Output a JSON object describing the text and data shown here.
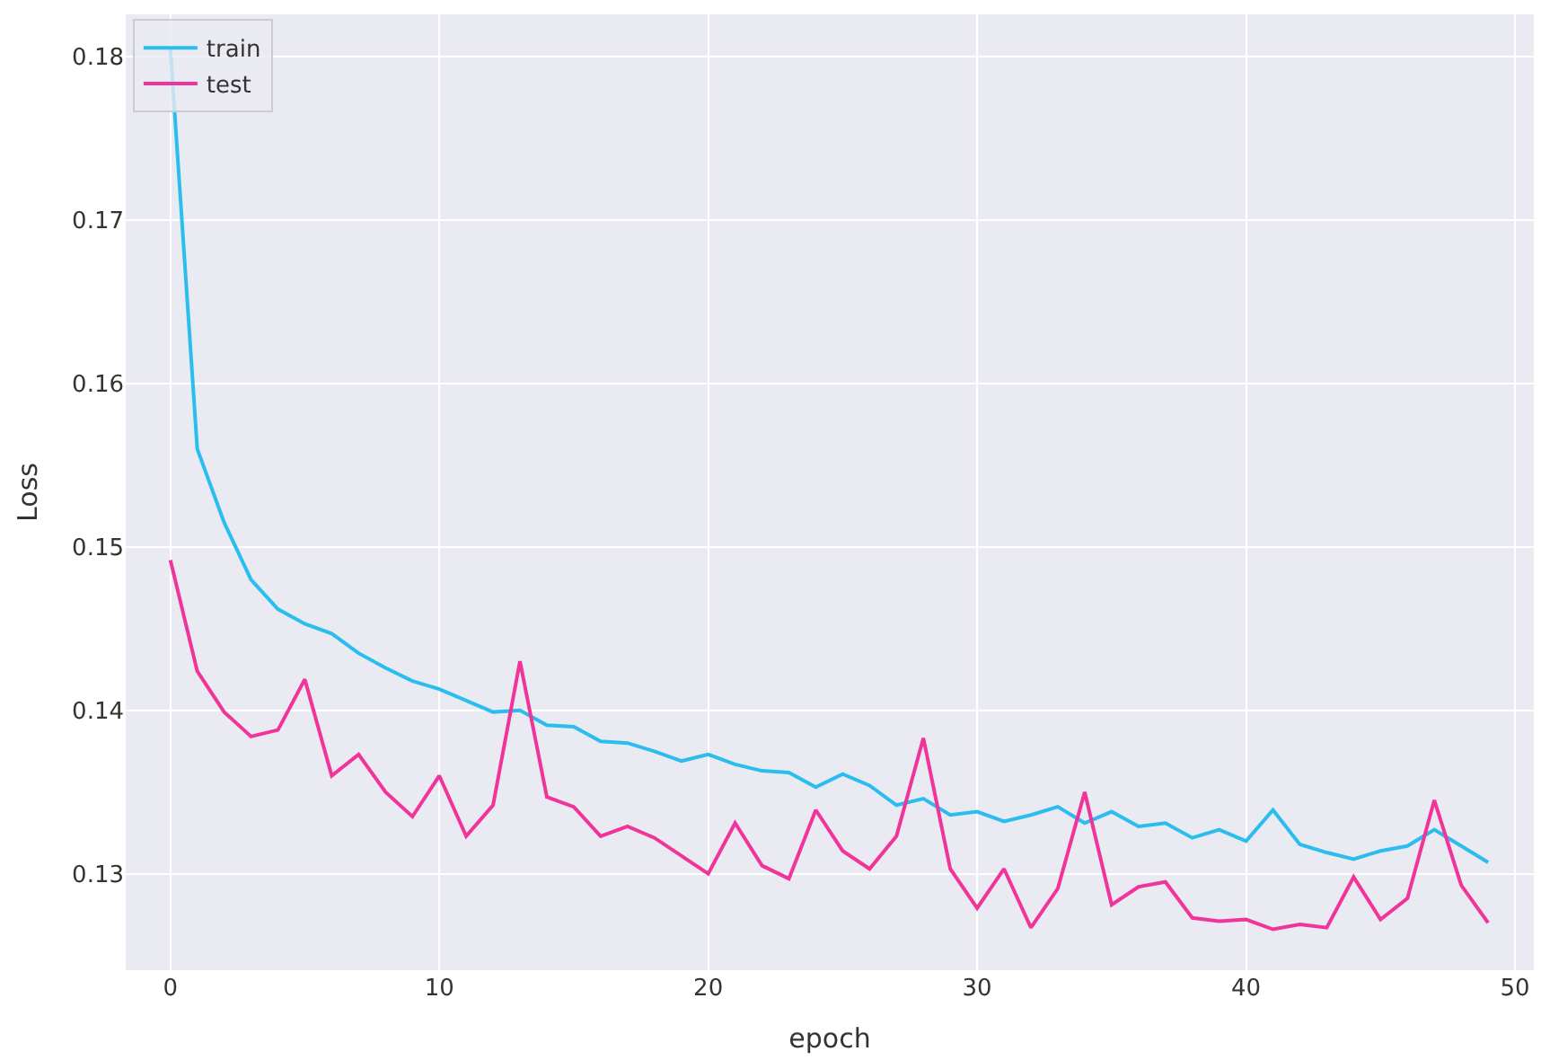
{
  "chart_data": {
    "type": "line",
    "xlabel": "epoch",
    "ylabel": "Loss",
    "x": [
      0,
      1,
      2,
      3,
      4,
      5,
      6,
      7,
      8,
      9,
      10,
      11,
      12,
      13,
      14,
      15,
      16,
      17,
      18,
      19,
      20,
      21,
      22,
      23,
      24,
      25,
      26,
      27,
      28,
      29,
      30,
      31,
      32,
      33,
      34,
      35,
      36,
      37,
      38,
      39,
      40,
      41,
      42,
      43,
      44,
      45,
      46,
      47,
      48,
      49
    ],
    "series": [
      {
        "name": "train",
        "color": "#2bbdee",
        "values": [
          0.1805,
          0.156,
          0.1515,
          0.148,
          0.1462,
          0.1453,
          0.1447,
          0.1435,
          0.1426,
          0.1418,
          0.1413,
          0.1406,
          0.1399,
          0.14,
          0.1391,
          0.139,
          0.1381,
          0.138,
          0.1375,
          0.1369,
          0.1373,
          0.1367,
          0.1363,
          0.1362,
          0.1353,
          0.1361,
          0.1354,
          0.1342,
          0.1346,
          0.1336,
          0.1338,
          0.1332,
          0.1336,
          0.1341,
          0.1331,
          0.1338,
          0.1329,
          0.1331,
          0.1322,
          0.1327,
          0.132,
          0.1339,
          0.1318,
          0.1313,
          0.1309,
          0.1314,
          0.1317,
          0.1327,
          0.1317,
          0.1307
        ]
      },
      {
        "name": "test",
        "color": "#f0349a",
        "values": [
          0.1492,
          0.1424,
          0.1399,
          0.1384,
          0.1388,
          0.1419,
          0.136,
          0.1373,
          0.135,
          0.1335,
          0.136,
          0.1323,
          0.1342,
          0.143,
          0.1347,
          0.1341,
          0.1323,
          0.1329,
          0.1322,
          0.1311,
          0.13,
          0.1331,
          0.1305,
          0.1297,
          0.1339,
          0.1314,
          0.1303,
          0.1323,
          0.1383,
          0.1303,
          0.1279,
          0.1303,
          0.1267,
          0.1291,
          0.135,
          0.1281,
          0.1292,
          0.1295,
          0.1273,
          0.1271,
          0.1272,
          0.1266,
          0.1269,
          0.1267,
          0.1298,
          0.1272,
          0.1285,
          0.1345,
          0.1293,
          0.127
        ]
      }
    ],
    "xlim": [
      -1.66,
      50.7
    ],
    "ylim": [
      0.1241,
      0.1826
    ],
    "xticks": [
      0,
      10,
      20,
      30,
      40,
      50
    ],
    "yticks": [
      {
        "value": 0.13,
        "label": "0.13"
      },
      {
        "value": 0.14,
        "label": "0.14"
      },
      {
        "value": 0.15,
        "label": "0.15"
      },
      {
        "value": 0.16,
        "label": "0.16"
      },
      {
        "value": 0.17,
        "label": "0.17"
      },
      {
        "value": 0.18,
        "label": "0.18"
      }
    ],
    "grid": true,
    "legend": "top left",
    "marker": "none",
    "line_style": "solid"
  }
}
